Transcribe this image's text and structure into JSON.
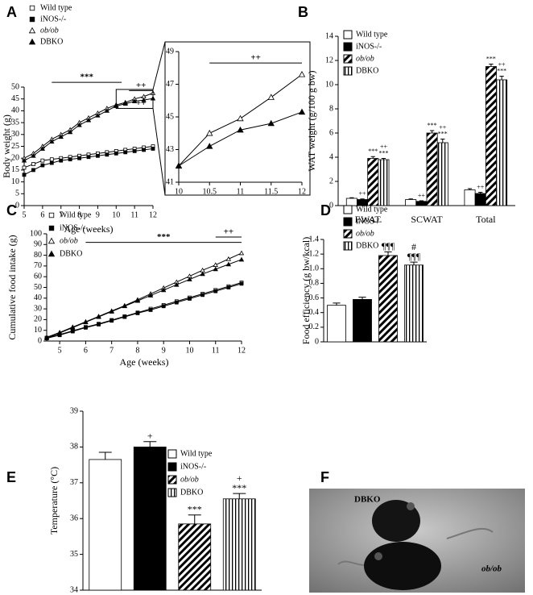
{
  "chart_data": [
    {
      "type": "line",
      "panel": "A",
      "xlabel": "Age (weeks)",
      "ylabel": "Body weight (g)",
      "x": [
        5,
        5.5,
        6,
        6.5,
        7,
        7.5,
        8,
        8.5,
        9,
        9.5,
        10,
        10.5,
        11,
        11.5,
        12
      ],
      "xlim": [
        5,
        12
      ],
      "xticks": [
        5,
        6,
        7,
        8,
        9,
        10,
        11,
        12
      ],
      "ylim": [
        0,
        50
      ],
      "yticks": [
        0,
        5,
        10,
        15,
        20,
        25,
        30,
        35,
        40,
        45,
        50
      ],
      "series": [
        {
          "name": "Wild type",
          "color": "#000",
          "marker": "square",
          "fill": "#fff",
          "values": [
            16,
            17.5,
            19,
            19.5,
            20,
            20.5,
            21,
            21.5,
            22,
            22.5,
            23,
            23.5,
            24,
            24.5,
            25
          ]
        },
        {
          "name": "iNOS-/-",
          "color": "#000",
          "marker": "square",
          "fill": "#000",
          "values": [
            13,
            15,
            17,
            18,
            19,
            19.5,
            20,
            20.5,
            21,
            21.5,
            22,
            22.5,
            23,
            23.5,
            24
          ]
        },
        {
          "name": "ob/ob",
          "color": "#000",
          "marker": "triangle",
          "fill": "#fff",
          "italic": true,
          "values": [
            20,
            22,
            25,
            28,
            30,
            32,
            35,
            37,
            39,
            41,
            42.5,
            43.5,
            45,
            46,
            47.5
          ]
        },
        {
          "name": "DBKO",
          "color": "#000",
          "marker": "triangle",
          "fill": "#000",
          "values": [
            19,
            21,
            24,
            27,
            29,
            31,
            34,
            36,
            38,
            40,
            42,
            43,
            44,
            44.5,
            45.2
          ]
        }
      ],
      "annotations": [
        {
          "text": "***",
          "x": [
            6.5,
            10.3
          ],
          "y": 52
        },
        {
          "text": "++",
          "x": [
            10.7,
            12
          ],
          "y": 48.5
        },
        {
          "text": "++",
          "x": [
            10.7,
            12
          ],
          "y": 41
        }
      ]
    },
    {
      "type": "line",
      "x": [
        10,
        10.5,
        11,
        11.5,
        12
      ],
      "xlim": [
        10,
        12
      ],
      "xticks": [
        10,
        10.5,
        11,
        11.5,
        12
      ],
      "ylim": [
        41,
        49
      ],
      "yticks": [
        41,
        43,
        45,
        47,
        49
      ],
      "series": [
        {
          "name": "ob/ob",
          "color": "#000",
          "marker": "triangle",
          "fill": "#fff",
          "values": [
            42,
            44,
            44.9,
            46.2,
            47.6
          ]
        },
        {
          "name": "DBKO",
          "color": "#000",
          "marker": "triangle",
          "fill": "#000",
          "values": [
            42,
            43.2,
            44.2,
            44.6,
            45.3
          ]
        }
      ],
      "annotations": [
        {
          "text": "++",
          "x": [
            10.5,
            12
          ],
          "y": 48.3
        }
      ]
    },
    {
      "type": "bar",
      "panel": "B",
      "ylabel": "WAT weight (g/100 g bw)",
      "categories": [
        "EWAT",
        "SCWAT",
        "Total"
      ],
      "ylim": [
        0,
        14
      ],
      "yticks": [
        0,
        2,
        4,
        6,
        8,
        10,
        12,
        14
      ],
      "series": [
        {
          "name": "Wild type",
          "fill": "#fff",
          "values": [
            0.6,
            0.5,
            1.3
          ],
          "errors": [
            0.05,
            0.05,
            0.1
          ],
          "marks_above": [
            null,
            null,
            null
          ]
        },
        {
          "name": "iNOS-/-",
          "fill": "#000",
          "values": [
            0.5,
            0.35,
            1.0
          ],
          "errors": [
            0.05,
            0.05,
            0.1
          ],
          "marks_above": [
            [
              "++"
            ],
            [
              "++"
            ],
            [
              "++"
            ]
          ]
        },
        {
          "name": "ob/ob",
          "fill": "#fff",
          "pattern": "diagonal",
          "italic": true,
          "values": [
            3.9,
            6.0,
            11.5
          ],
          "errors": [
            0.15,
            0.2,
            0.2
          ],
          "marks_above": [
            [
              "***"
            ],
            [
              "***"
            ],
            [
              "***"
            ]
          ]
        },
        {
          "name": "DBKO",
          "fill": "#fff",
          "pattern": "vertical",
          "values": [
            3.8,
            5.2,
            10.4
          ],
          "errors": [
            0.1,
            0.3,
            0.3
          ],
          "marks_above": [
            [
              "++",
              "***"
            ],
            [
              "++",
              "***"
            ],
            [
              "++",
              "***"
            ]
          ]
        }
      ]
    },
    {
      "type": "line",
      "panel": "C",
      "xlabel": "Age (weeks)",
      "ylabel": "Cumulative food intake (g)",
      "x": [
        4.5,
        5,
        5.5,
        6,
        6.5,
        7,
        7.5,
        8,
        8.5,
        9,
        9.5,
        10,
        10.5,
        11,
        11.5,
        12
      ],
      "xlim": [
        4.5,
        12
      ],
      "xticks": [
        5,
        6,
        7,
        8,
        9,
        10,
        11,
        12
      ],
      "ylim": [
        0,
        100
      ],
      "yticks": [
        0,
        10,
        20,
        30,
        40,
        50,
        60,
        70,
        80,
        90,
        100
      ],
      "series": [
        {
          "name": "Wild type",
          "color": "#000",
          "marker": "square",
          "fill": "#fff",
          "values": [
            3,
            6,
            9.5,
            13,
            16,
            19.5,
            23,
            26.5,
            30,
            33.5,
            37,
            40.5,
            44,
            47.5,
            51,
            54.5
          ]
        },
        {
          "name": "iNOS-/-",
          "color": "#000",
          "marker": "square",
          "fill": "#000",
          "values": [
            2.5,
            5.5,
            9,
            12.5,
            15.5,
            19,
            22.5,
            26,
            29,
            32.5,
            36,
            39.5,
            43,
            46.5,
            50,
            53.5
          ]
        },
        {
          "name": "ob/ob",
          "color": "#000",
          "marker": "triangle",
          "fill": "#fff",
          "italic": true,
          "values": [
            3.5,
            8,
            13,
            18,
            23,
            28,
            33,
            38.5,
            44,
            49.5,
            55,
            60.5,
            66,
            71,
            76.5,
            82
          ]
        },
        {
          "name": "DBKO",
          "color": "#000",
          "marker": "triangle",
          "fill": "#000",
          "values": [
            3,
            7.5,
            12.5,
            17.5,
            22.5,
            27.5,
            32.5,
            37.5,
            42.5,
            47.5,
            52.5,
            57.5,
            62.5,
            67,
            71.5,
            76
          ]
        }
      ],
      "annotations": [
        {
          "text": "***",
          "x": [
            6,
            12
          ],
          "y": 92
        },
        {
          "text": "++",
          "x": [
            11,
            12
          ],
          "y": 97
        }
      ]
    },
    {
      "type": "bar",
      "panel": "D",
      "ylabel": "Food efficiency (g bw/kcal)",
      "ylim": [
        0,
        1.4
      ],
      "yticks": [
        0,
        0.2,
        0.4,
        0.6,
        0.8,
        {
          "value": 1,
          "label": "1.0"
        },
        1.2,
        1.4
      ],
      "series": [
        {
          "name": "Wild type",
          "fill": "#fff",
          "values": [
            0.5
          ],
          "errors": [
            0.03
          ],
          "marks_above": [
            null
          ]
        },
        {
          "name": "iNOS-/-",
          "fill": "#000",
          "values": [
            0.58
          ],
          "errors": [
            0.03
          ],
          "marks_above": [
            null
          ]
        },
        {
          "name": "ob/ob",
          "fill": "#fff",
          "pattern": "diagonal",
          "italic": true,
          "values": [
            1.18
          ],
          "errors": [
            0.05
          ],
          "marks_above": [
            [
              "¶¶¶"
            ]
          ]
        },
        {
          "name": "DBKO",
          "fill": "#fff",
          "pattern": "vertical",
          "values": [
            1.05
          ],
          "errors": [
            0.04
          ],
          "marks_above": [
            [
              "#",
              "¶¶¶"
            ]
          ]
        }
      ]
    },
    {
      "type": "bar",
      "panel": "E",
      "ylabel": "Temperature (°C)",
      "ylim": [
        34,
        39
      ],
      "yticks": [
        34,
        35,
        36,
        37,
        38,
        39
      ],
      "series": [
        {
          "name": "Wild type",
          "fill": "#fff",
          "values": [
            37.65
          ],
          "errors": [
            0.2
          ],
          "marks_above": [
            null
          ]
        },
        {
          "name": "iNOS-/-",
          "fill": "#000",
          "values": [
            38.0
          ],
          "errors": [
            0.15
          ],
          "marks_above": [
            [
              "+"
            ]
          ]
        },
        {
          "name": "ob/ob",
          "fill": "#fff",
          "pattern": "diagonal",
          "italic": true,
          "values": [
            35.85
          ],
          "errors": [
            0.25
          ],
          "marks_above": [
            [
              "***"
            ]
          ]
        },
        {
          "name": "DBKO",
          "fill": "#fff",
          "pattern": "vertical",
          "values": [
            36.55
          ],
          "errors": [
            0.15
          ],
          "marks_above": [
            [
              "+",
              "***"
            ]
          ]
        }
      ]
    }
  ],
  "photo": {
    "panel": "F",
    "labels": [
      "DBKO",
      "ob/ob"
    ]
  }
}
